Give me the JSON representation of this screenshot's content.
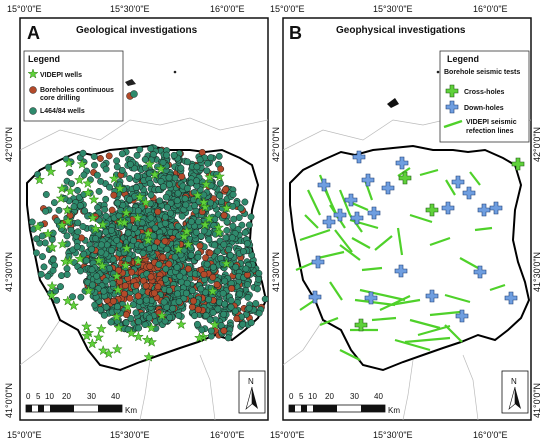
{
  "panels": [
    {
      "letter": "A",
      "title": "Geological investigations",
      "legend_title": "Legend",
      "legend_items": [
        {
          "label": "VIDEPI wells",
          "symbol": "green-star",
          "color": "#5fd13a"
        },
        {
          "label": "Boreholes continuous",
          "symbol": "brown-circle",
          "color": "#b34a2a"
        },
        {
          "label": "core drilling",
          "symbol": "",
          "color": ""
        },
        {
          "label": "L464/84 wells",
          "symbol": "teal-circle",
          "color": "#2e8a6c"
        }
      ],
      "scale_numbers": [
        "0",
        "5",
        "10",
        "20",
        "30",
        "40"
      ],
      "scale_unit": "Km",
      "north": "N"
    },
    {
      "letter": "B",
      "title": "Geophysical investigations",
      "legend_title": "Legend",
      "legend_subtitle": "Borehole seismic tests",
      "legend_items": [
        {
          "label": "Cross-holes",
          "symbol": "green-cross",
          "color": "#5fd13a"
        },
        {
          "label": "Down-holes",
          "symbol": "blue-cross",
          "color": "#6f9ee0"
        },
        {
          "label": "VIDEPI seismic",
          "symbol": "green-line",
          "color": "#4fd12a"
        },
        {
          "label": "refection lines",
          "symbol": "",
          "color": ""
        }
      ],
      "scale_numbers": [
        "0",
        "5",
        "10",
        "20",
        "30",
        "40"
      ],
      "scale_unit": "Km",
      "north": "N"
    }
  ],
  "x_labels": [
    "15°0'0\"E",
    "15°30'0\"E",
    "16°0'0\"E"
  ],
  "y_labels": [
    "42°0'0\"N",
    "41°30'0\"N",
    "41°0'0\"N"
  ],
  "colors": {
    "videpi_star": "#5fd13a",
    "borehole": "#b34a2a",
    "l464_well": "#2e8a6c",
    "cross_hole": "#5fd13a",
    "down_hole": "#6f9ee0",
    "seismic_line": "#4fd12a"
  }
}
